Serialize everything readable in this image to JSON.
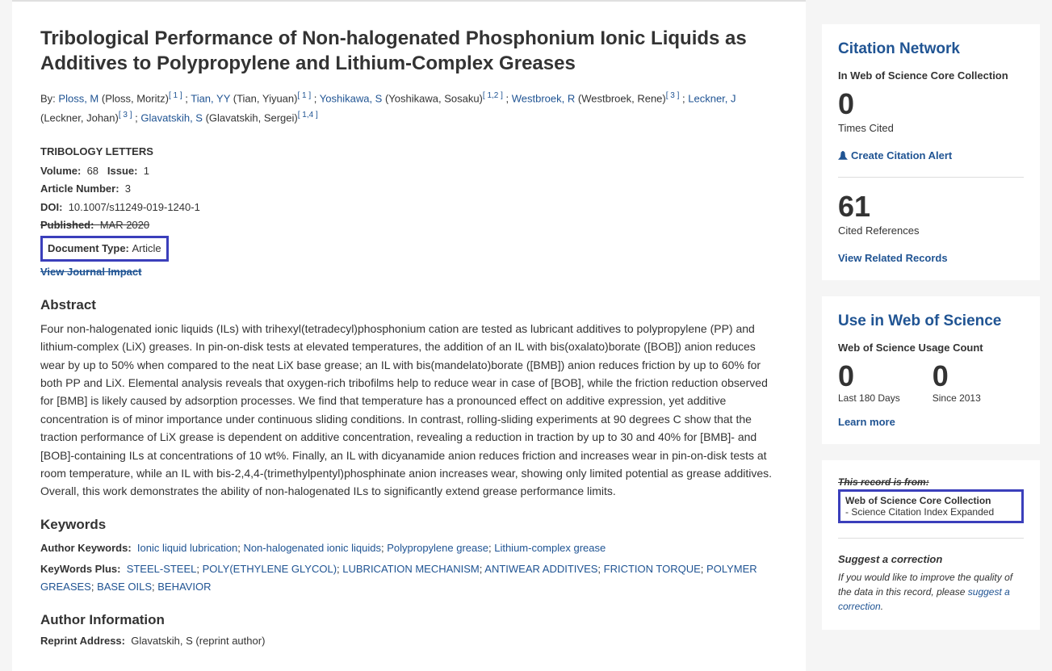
{
  "title": "Tribological Performance of Non-halogenated Phosphonium Ionic Liquids as Additives to Polypropylene and Lithium-Complex Greases",
  "by_label": "By:",
  "authors": [
    {
      "link": "Ploss, M",
      "paren": " (Ploss, Moritz)",
      "sup": "[ 1 ]"
    },
    {
      "link": "Tian, YY",
      "paren": " (Tian, Yiyuan)",
      "sup": "[ 1 ]"
    },
    {
      "link": "Yoshikawa, S",
      "paren": " (Yoshikawa, Sosaku)",
      "sup": "[ 1,2 ]"
    },
    {
      "link": "Westbroek, R",
      "paren": " (Westbroek, Rene)",
      "sup": "[ 3 ]"
    },
    {
      "link": "Leckner, J",
      "paren": " (Leckner, Johan)",
      "sup": "[ 3 ]"
    },
    {
      "link": "Glavatskih, S",
      "paren": " (Glavatskih, Sergei)",
      "sup": "[ 1,4 ]"
    }
  ],
  "journal": "TRIBOLOGY LETTERS",
  "volume_label": "Volume:",
  "volume": "68",
  "issue_label": "Issue:",
  "issue": "1",
  "artnum_label": "Article Number:",
  "artnum": "3",
  "doi_label": "DOI:",
  "doi": "10.1007/s11249-019-1240-1",
  "published_label": "Published:",
  "published_value": "MAR 2020",
  "doctype_label": "Document Type:",
  "doctype": "Article",
  "view_journal_impact": "View Journal Impact",
  "abstract_heading": "Abstract",
  "abstract": "Four non-halogenated ionic liquids (ILs) with trihexyl(tetradecyl)phosphonium cation are tested as lubricant additives to polypropylene (PP) and lithium-complex (LiX) greases. In pin-on-disk tests at elevated temperatures, the addition of an IL with bis(oxalato)borate ([BOB]) anion reduces wear by up to 50% when compared to the neat LiX base grease; an IL with bis(mandelato)borate ([BMB]) anion reduces friction by up to 60% for both PP and LiX. Elemental analysis reveals that oxygen-rich tribofilms help to reduce wear in case of [BOB], while the friction reduction observed for [BMB] is likely caused by adsorption processes. We find that temperature has a pronounced effect on additive expression, yet additive concentration is of minor importance under continuous sliding conditions. In contrast, rolling-sliding experiments at 90 degrees C show that the traction performance of LiX grease is dependent on additive concentration, revealing a reduction in traction by up to 30 and 40% for [BMB]- and [BOB]-containing ILs at concentrations of 10 wt%. Finally, an IL with dicyanamide anion reduces friction and increases wear in pin-on-disk tests at room temperature, while an IL with bis-2,4,4-(trimethylpentyl)phosphinate anion increases wear, showing only limited potential as grease additives. Overall, this work demonstrates the ability of non-halogenated ILs to significantly extend grease performance limits.",
  "keywords_heading": "Keywords",
  "author_keywords_label": "Author Keywords:",
  "author_keywords": [
    "Ionic liquid lubrication",
    "Non-halogenated ionic liquids",
    "Polypropylene grease",
    "Lithium-complex grease"
  ],
  "keywords_plus_label": "KeyWords Plus:",
  "keywords_plus": [
    "STEEL-STEEL",
    "POLY(ETHYLENE GLYCOL)",
    "LUBRICATION MECHANISM",
    "ANTIWEAR ADDITIVES",
    "FRICTION TORQUE",
    "POLYMER GREASES",
    "BASE OILS",
    "BEHAVIOR"
  ],
  "author_info_heading": "Author Information",
  "reprint_label": "Reprint Address:",
  "reprint_value": "Glavatskih, S (reprint author)",
  "citation": {
    "title": "Citation Network",
    "subtitle": "In Web of Science Core Collection",
    "cited_num": "0",
    "cited_label": "Times Cited",
    "alert": "Create Citation Alert",
    "refs_num": "61",
    "refs_label": "Cited References",
    "related": "View Related Records"
  },
  "usage": {
    "title": "Use in Web of Science",
    "subtitle": "Web of Science Usage Count",
    "n1": "0",
    "l1": "Last 180 Days",
    "n2": "0",
    "l2": "Since 2013",
    "learn": "Learn more"
  },
  "record": {
    "from_label": "This record is from:",
    "line1": "Web of Science Core Collection",
    "line2": "- Science Citation Index Expanded",
    "suggest_title": "Suggest a correction",
    "suggest_text": "If you would like to improve the quality of the data in this record, please ",
    "suggest_link": "suggest a correction",
    "suggest_end": "."
  }
}
